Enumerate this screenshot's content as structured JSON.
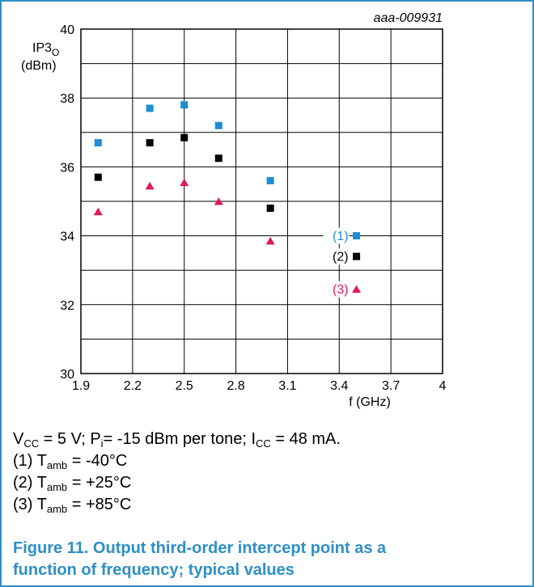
{
  "chart_data": {
    "type": "scatter",
    "code": "aaa-009931",
    "ylabel_main": "IP3",
    "ylabel_sub": "O",
    "ylabel_unit": "(dBm)",
    "xlabel": "f (GHz)",
    "xlim": [
      1.9,
      4.0
    ],
    "ylim": [
      30,
      40
    ],
    "xticks": [
      "1.9",
      "2.2",
      "2.5",
      "2.8",
      "3.1",
      "3.4",
      "3.7",
      "4"
    ],
    "yticks": [
      "30",
      "32",
      "34",
      "36",
      "38",
      "40"
    ],
    "grid": true,
    "series": [
      {
        "label": "(1)",
        "marker": "square",
        "color": "#1f8dd6",
        "x": [
          2.0,
          2.3,
          2.5,
          2.7,
          3.0,
          3.5
        ],
        "y": [
          36.7,
          37.7,
          37.8,
          37.2,
          35.6,
          34.0
        ]
      },
      {
        "label": "(2)",
        "marker": "square",
        "color": "#000000",
        "x": [
          2.0,
          2.3,
          2.5,
          2.7,
          3.0,
          3.5
        ],
        "y": [
          35.7,
          36.7,
          36.85,
          36.25,
          34.8,
          33.4
        ]
      },
      {
        "label": "(3)",
        "marker": "triangle",
        "color": "#e0185c",
        "x": [
          2.0,
          2.3,
          2.5,
          2.7,
          3.0,
          3.5
        ],
        "y": [
          34.7,
          35.45,
          35.55,
          35.0,
          33.85,
          32.45
        ]
      }
    ]
  },
  "notes": {
    "line1": {
      "vcc_sym": "V",
      "vcc_sub": "CC",
      "vcc_val": " = 5 V; ",
      "pi_sym": "P",
      "pi_sub": "i",
      "pi_val": "= -15 dBm per tone; ",
      "icc_sym": "I",
      "icc_sub": "CC",
      "icc_val": " = 48 mA."
    },
    "items": [
      {
        "num": "(1) ",
        "sym": "T",
        "sub": "amb",
        "val": " = -40°C"
      },
      {
        "num": "(2) ",
        "sym": "T",
        "sub": "amb",
        "val": " = +25°C"
      },
      {
        "num": "(3) ",
        "sym": "T",
        "sub": "amb",
        "val": " = +85°C"
      }
    ]
  },
  "caption": {
    "line1": "Figure 11.  Output third-order intercept point as a",
    "line2": "function of frequency; typical values"
  }
}
